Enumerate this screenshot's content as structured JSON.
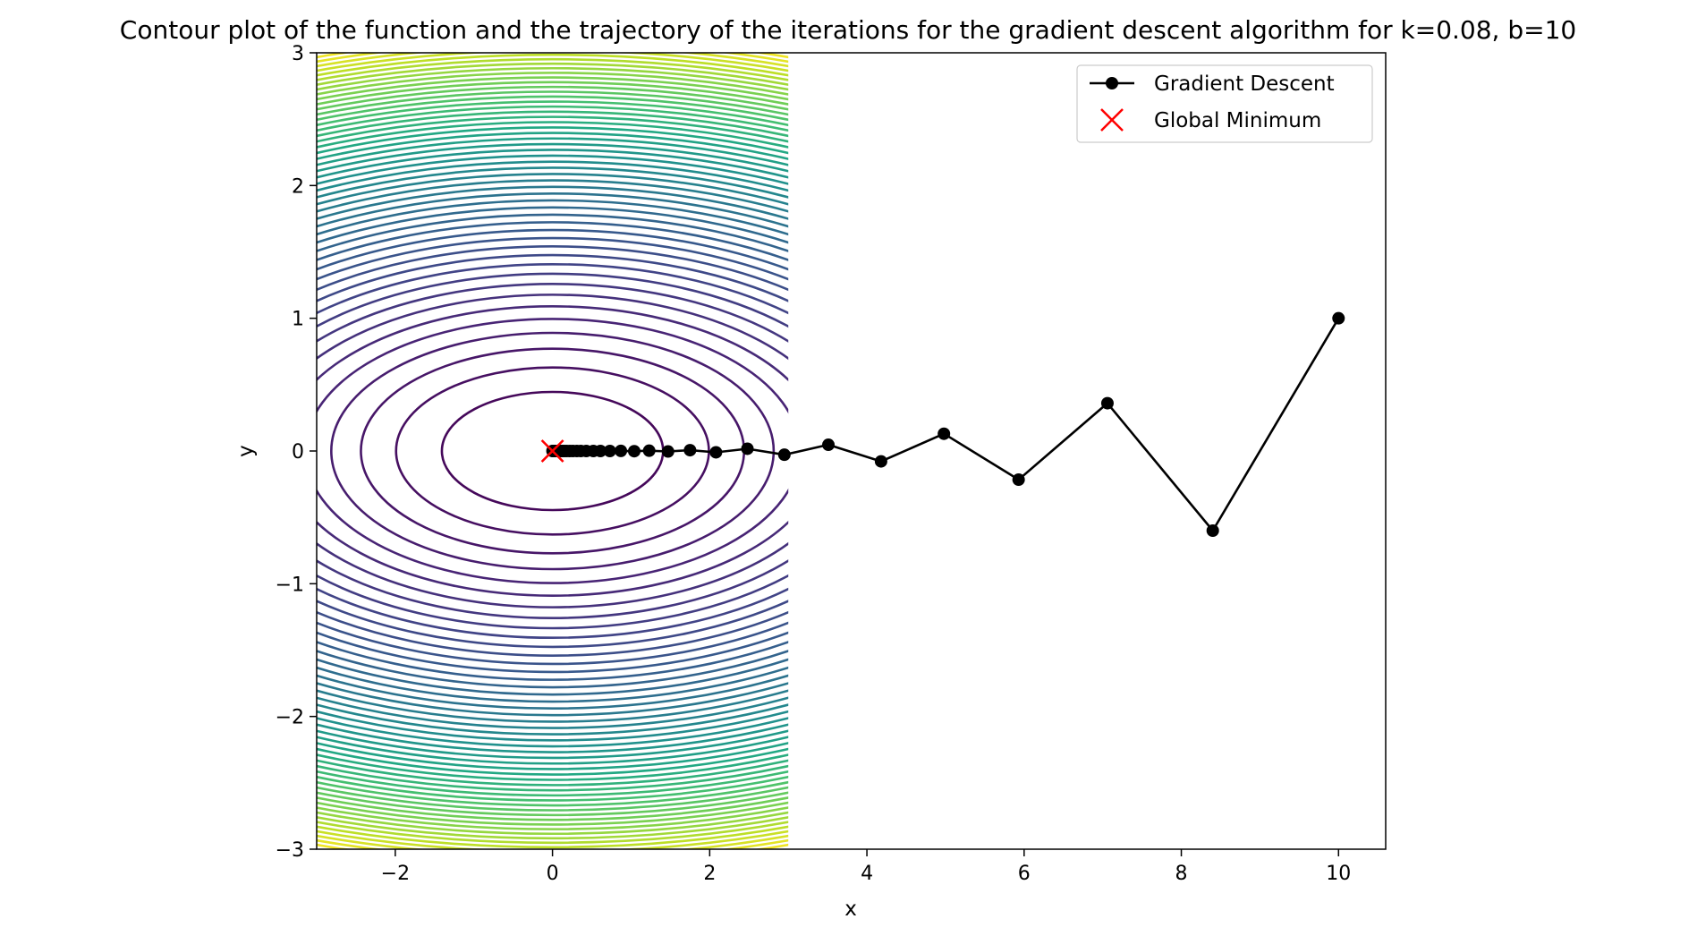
{
  "chart_data": {
    "type": "contour",
    "title": "Contour plot of the function and the trajectory of the iterations for the gradient descent algorithm for k=0.08, b=10",
    "xlabel": "x",
    "ylabel": "y",
    "xlim": [
      -3,
      10.6
    ],
    "ylim": [
      -3,
      3
    ],
    "x_ticks": [
      -2,
      0,
      2,
      4,
      6,
      8,
      10
    ],
    "y_ticks": [
      -3,
      -2,
      -1,
      0,
      1,
      2,
      3
    ],
    "x_tick_labels": [
      "−2",
      "0",
      "2",
      "4",
      "6",
      "8",
      "10"
    ],
    "y_tick_labels": [
      "−3",
      "−2",
      "−1",
      "0",
      "1",
      "2",
      "3"
    ],
    "contour": {
      "function": "x^2 + b*y^2",
      "b": 10,
      "x_range": [
        -3,
        3
      ],
      "y_range": [
        -3,
        3
      ],
      "levels_count": 50,
      "colormap": "viridis"
    },
    "series": [
      {
        "name": "Gradient Descent",
        "color": "#000000",
        "marker": "circle",
        "points": [
          [
            10,
            1
          ],
          [
            8.4,
            -0.6
          ],
          [
            7.06,
            0.36
          ],
          [
            5.93,
            -0.216
          ],
          [
            4.98,
            0.13
          ],
          [
            4.18,
            -0.078
          ],
          [
            3.51,
            0.047
          ],
          [
            2.95,
            -0.028
          ],
          [
            2.48,
            0.017
          ],
          [
            2.08,
            -0.01
          ],
          [
            1.75,
            0.006
          ],
          [
            1.47,
            -0.0036
          ],
          [
            1.23,
            0.0022
          ],
          [
            1.04,
            -0.0013
          ],
          [
            0.87,
            0.0008
          ],
          [
            0.73,
            0
          ],
          [
            0.61,
            0
          ],
          [
            0.52,
            0
          ],
          [
            0.43,
            0
          ],
          [
            0.36,
            0
          ],
          [
            0.31,
            0
          ],
          [
            0.26,
            0
          ],
          [
            0.22,
            0
          ],
          [
            0.18,
            0
          ],
          [
            0.15,
            0
          ],
          [
            0.13,
            0
          ],
          [
            0.11,
            0
          ],
          [
            0.09,
            0
          ],
          [
            0.08,
            0
          ],
          [
            0.06,
            0
          ],
          [
            0.05,
            0
          ],
          [
            0.04,
            0
          ],
          [
            0.03,
            0
          ],
          [
            0.02,
            0
          ],
          [
            0.01,
            0
          ],
          [
            0,
            0
          ]
        ]
      },
      {
        "name": "Global Minimum",
        "color": "#ff0000",
        "marker": "x",
        "points": [
          [
            0,
            0
          ]
        ]
      }
    ],
    "legend": {
      "position": "top-right",
      "entries": [
        "Gradient Descent",
        "Global Minimum"
      ]
    }
  }
}
